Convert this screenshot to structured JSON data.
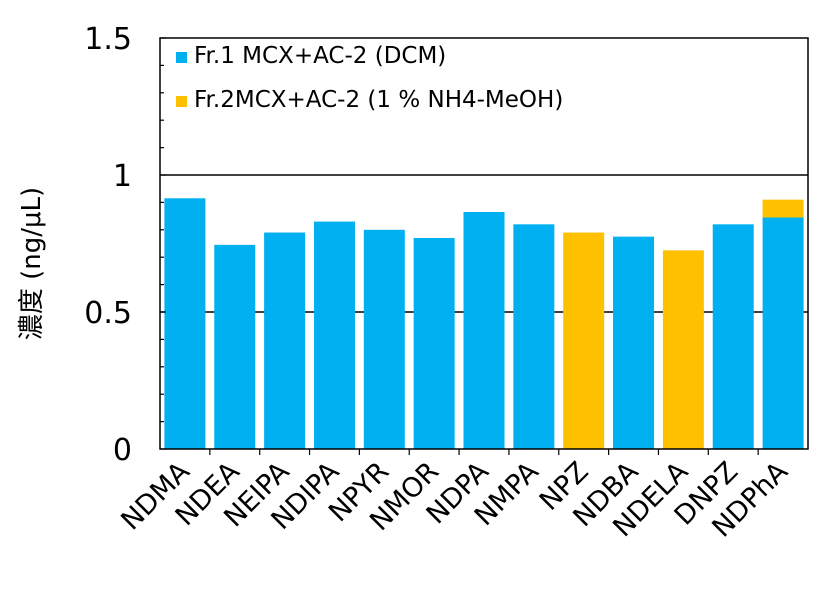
{
  "chart_data": {
    "type": "bar",
    "stacked": true,
    "categories": [
      "NDMA",
      "NDEA",
      "NEIPA",
      "NDIPA",
      "NPYR",
      "NMOR",
      "NDPA",
      "NMPA",
      "NPZ",
      "NDBA",
      "NDELA",
      "DNPZ",
      "NDPhA"
    ],
    "series": [
      {
        "name": "Fr.1 MCX+AC-2 (DCM)",
        "color": "#00b0f0",
        "values": [
          0.915,
          0.745,
          0.79,
          0.83,
          0.8,
          0.77,
          0.865,
          0.82,
          0,
          0.775,
          0,
          0.82,
          0.845
        ]
      },
      {
        "name": "Fr.2MCX+AC-2 (1 % NH4-MeOH)",
        "color": "#ffc000",
        "values": [
          0,
          0,
          0,
          0,
          0,
          0,
          0,
          0,
          0.79,
          0,
          0.725,
          0,
          0.065
        ]
      }
    ],
    "ylabel": "濃度 (ng/μL)",
    "xlabel": "",
    "ylim": [
      0,
      1.5
    ],
    "yticks": [
      "0",
      "0.5",
      "1",
      "1.5"
    ],
    "ytick_values": [
      0,
      0.5,
      1,
      1.5
    ],
    "gridlines": [
      0.5,
      1
    ],
    "legend_position": "top-left"
  }
}
